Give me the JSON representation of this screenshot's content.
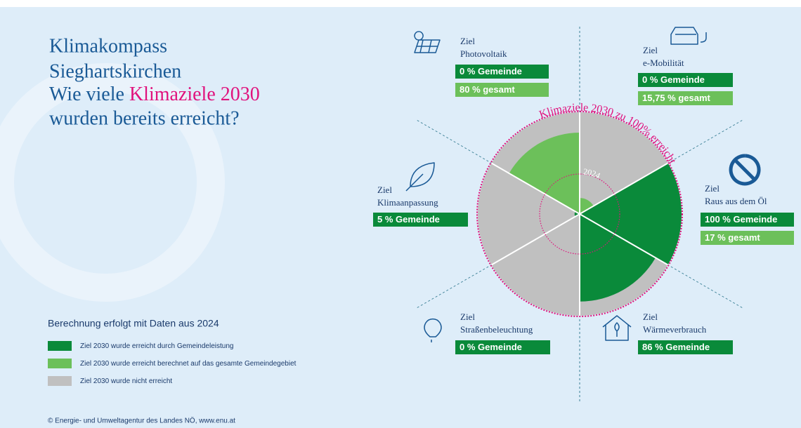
{
  "title": [
    "Klimakompass",
    "Sieghartskirchen"
  ],
  "question": [
    "Wie viele ",
    "Klimaziele 2030",
    "wurden bereits erreicht?"
  ],
  "legend_title": "Berechnung erfolgt mit Daten aus 2024",
  "footer": "© Energie- und Umweltagentur des Landes NÖ, www.enu.at",
  "chart_data": {
    "type": "polar",
    "goal_prefix": "Ziel",
    "ring_label": "Klimaziele 2030 zu 100% erreicht",
    "inner_ring_label": "2024",
    "categories": [
      "e-Mobilität",
      "Raus aus dem Öl",
      "Wärmeverbrauch",
      "Straßenbeleuchtung",
      "Klimaanpassung",
      "Photovoltaik"
    ],
    "rlim": [
      0,
      100
    ],
    "not_reached": {
      "name": "Ziel 2030 wurde nicht erreicht",
      "color": "#c0c0c0"
    },
    "series": [
      {
        "name": "Ziel 2030 wurde erreicht durch Gemeindeleistung",
        "color": "#0a8a3a",
        "values": [
          0,
          100,
          86,
          0,
          5,
          0
        ],
        "value_labels": [
          "0 % Gemeinde",
          "100 % Gemeinde",
          "86 % Gemeinde",
          "0 % Gemeinde",
          "5 % Gemeinde",
          "0 % Gemeinde"
        ]
      },
      {
        "name": "Ziel 2030 wurde erreicht berechnet auf das gesamte Gemeindegebiet",
        "color": "#6cc05a",
        "values": [
          15.75,
          17,
          null,
          null,
          null,
          80
        ],
        "value_labels": [
          "15,75 % gesamt",
          "17 % gesamt",
          null,
          null,
          null,
          "80 % gesamt"
        ]
      }
    ]
  }
}
